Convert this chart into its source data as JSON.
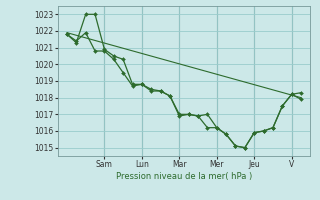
{
  "bg_color": "#cce8e8",
  "grid_color": "#99cccc",
  "line_color": "#2d6b2d",
  "marker_color": "#2d6b2d",
  "xlabel": "Pression niveau de la mer( hPa )",
  "ylim": [
    1014.5,
    1023.5
  ],
  "yticks": [
    1015,
    1016,
    1017,
    1018,
    1019,
    1020,
    1021,
    1022,
    1023
  ],
  "day_labels": [
    "Sam",
    "Lun",
    "Mar",
    "Mer",
    "Jeu",
    "V"
  ],
  "day_positions": [
    2,
    4,
    6,
    8,
    10,
    12
  ],
  "xlim": [
    -0.5,
    13.0
  ],
  "series1_x": [
    0,
    0.5,
    1.0,
    1.5,
    2.0,
    2.5,
    3.0,
    3.5,
    4.0,
    4.5,
    5.0,
    5.5,
    6.0,
    6.5,
    7.0,
    7.5,
    8.0,
    8.5,
    9.0,
    9.5,
    10.0,
    10.5,
    11.0,
    11.5,
    12.0,
    12.5
  ],
  "series1_y": [
    1021.8,
    1021.3,
    1023.0,
    1023.0,
    1020.9,
    1020.5,
    1020.3,
    1018.8,
    1018.8,
    1018.4,
    1018.4,
    1018.1,
    1016.9,
    1017.0,
    1016.9,
    1017.0,
    1016.2,
    1015.8,
    1015.1,
    1015.0,
    1015.9,
    1016.0,
    1016.2,
    1017.5,
    1018.2,
    1018.3
  ],
  "series2_x": [
    0,
    0.5,
    1.0,
    1.5,
    2.0,
    2.5,
    3.0,
    3.5,
    4.0,
    4.5,
    5.0,
    5.5,
    6.0,
    6.5,
    7.0,
    7.5,
    8.0,
    8.5,
    9.0,
    9.5,
    10.0,
    10.5,
    11.0,
    11.5,
    12.0,
    12.5
  ],
  "series2_y": [
    1021.8,
    1021.4,
    1021.9,
    1020.8,
    1020.8,
    1020.3,
    1019.5,
    1018.7,
    1018.8,
    1018.5,
    1018.4,
    1018.1,
    1017.0,
    1017.0,
    1016.9,
    1016.2,
    1016.2,
    1015.8,
    1015.1,
    1015.0,
    1015.9,
    1016.0,
    1016.2,
    1017.5,
    1018.2,
    1017.9
  ],
  "trend_x": [
    0,
    12.5
  ],
  "trend_y": [
    1021.9,
    1018.0
  ]
}
